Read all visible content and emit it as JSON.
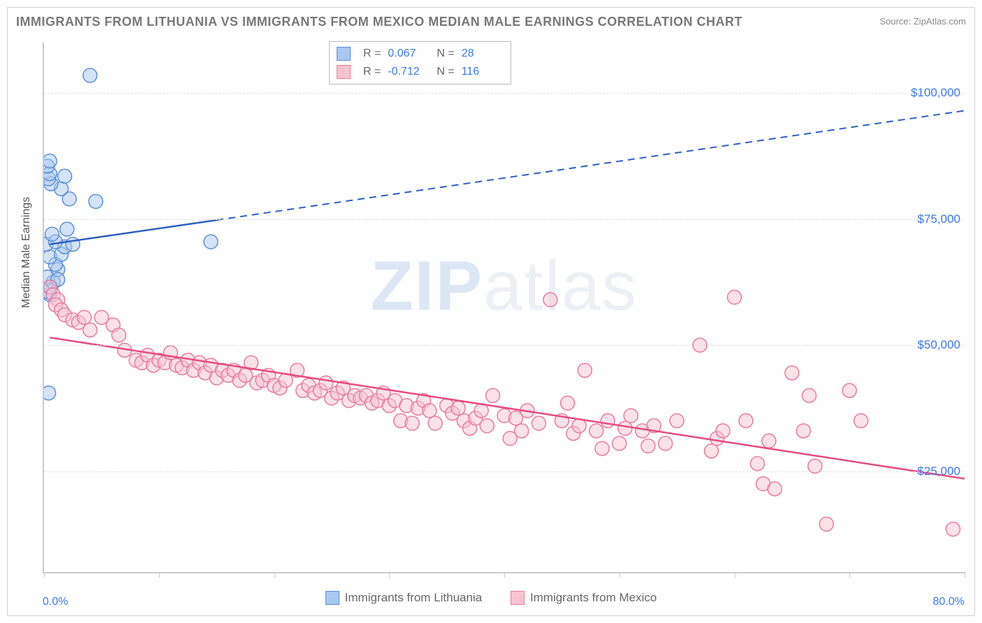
{
  "title": "IMMIGRANTS FROM LITHUANIA VS IMMIGRANTS FROM MEXICO MEDIAN MALE EARNINGS CORRELATION CHART",
  "source": "Source: ZipAtlas.com",
  "watermark_a": "ZIP",
  "watermark_b": "atlas",
  "chart": {
    "type": "scatter",
    "background_color": "#ffffff",
    "grid_color": "#e0e0e0",
    "axis_color": "#cacaca",
    "tick_label_color": "#3b78e7",
    "ylabel": "Median Male Earnings",
    "ylabel_color": "#555555",
    "ylabel_fontsize": 16,
    "xlim": [
      0,
      80
    ],
    "xtick_positions": [
      0,
      10,
      20,
      30,
      40,
      50,
      60,
      70,
      80
    ],
    "xmin_label": "0.0%",
    "xmax_label": "80.0%",
    "ylim": [
      5000,
      110000
    ],
    "yticks": [
      25000,
      50000,
      75000,
      100000
    ],
    "ytick_labels": [
      "$25,000",
      "$50,000",
      "$75,000",
      "$100,000"
    ],
    "marker_radius": 10,
    "marker_opacity": 0.5,
    "line_width": 2.5,
    "dashed_line_width": 2,
    "series": [
      {
        "name": "Immigrants from Lithuania",
        "fill_color": "#a9c7f0",
        "stroke_color": "#5b8fd6",
        "line_color": "#2e5fc4",
        "R": "0.067",
        "N": "28",
        "trend_solid": {
          "x1": 0.5,
          "y1": 70000,
          "x2": 15,
          "y2": 74800
        },
        "trend_dashed": {
          "x1": 15,
          "y1": 74800,
          "x2": 80,
          "y2": 96500
        },
        "points": [
          [
            0.5,
            60000
          ],
          [
            0.4,
            60500
          ],
          [
            0.6,
            61500
          ],
          [
            0.8,
            62500
          ],
          [
            0.3,
            63500
          ],
          [
            1.2,
            65000
          ],
          [
            1.0,
            66000
          ],
          [
            0.5,
            67500
          ],
          [
            1.5,
            68000
          ],
          [
            1.8,
            69500
          ],
          [
            0.2,
            70000
          ],
          [
            2.5,
            70000
          ],
          [
            1.0,
            70500
          ],
          [
            0.7,
            72000
          ],
          [
            2.0,
            73000
          ],
          [
            4.5,
            78500
          ],
          [
            2.2,
            79000
          ],
          [
            1.5,
            81000
          ],
          [
            0.6,
            82000
          ],
          [
            0.4,
            83000
          ],
          [
            1.8,
            83500
          ],
          [
            0.5,
            84000
          ],
          [
            0.3,
            85500
          ],
          [
            0.5,
            86500
          ],
          [
            4.0,
            103500
          ],
          [
            0.4,
            40500
          ],
          [
            1.2,
            63000
          ],
          [
            14.5,
            70500
          ]
        ]
      },
      {
        "name": "Immigrants from Mexico",
        "fill_color": "#f7c3d2",
        "stroke_color": "#e77aa0",
        "line_color": "#e84a82",
        "R": "-0.712",
        "N": "116",
        "trend_solid": {
          "x1": 0.5,
          "y1": 51500,
          "x2": 80,
          "y2": 23500
        },
        "trend_dashed": null,
        "points": [
          [
            0.5,
            61500
          ],
          [
            0.8,
            60000
          ],
          [
            1.2,
            59000
          ],
          [
            1.0,
            58000
          ],
          [
            1.5,
            57000
          ],
          [
            1.8,
            56000
          ],
          [
            2.5,
            55000
          ],
          [
            3.0,
            54500
          ],
          [
            3.5,
            55500
          ],
          [
            4.0,
            53000
          ],
          [
            5.0,
            55500
          ],
          [
            6.0,
            54000
          ],
          [
            6.5,
            52000
          ],
          [
            7.0,
            49000
          ],
          [
            8.0,
            47000
          ],
          [
            8.5,
            46500
          ],
          [
            9.0,
            48000
          ],
          [
            9.5,
            46000
          ],
          [
            10,
            47000
          ],
          [
            10.5,
            46500
          ],
          [
            11,
            48500
          ],
          [
            11.5,
            46000
          ],
          [
            12,
            45500
          ],
          [
            12.5,
            47000
          ],
          [
            13,
            45000
          ],
          [
            13.5,
            46500
          ],
          [
            14,
            44500
          ],
          [
            14.5,
            46000
          ],
          [
            15,
            43500
          ],
          [
            15.5,
            45000
          ],
          [
            16,
            44000
          ],
          [
            16.5,
            45000
          ],
          [
            17,
            43000
          ],
          [
            17.5,
            44000
          ],
          [
            18,
            46500
          ],
          [
            18.5,
            42500
          ],
          [
            19,
            43000
          ],
          [
            19.5,
            44000
          ],
          [
            20,
            42000
          ],
          [
            20.5,
            41500
          ],
          [
            21,
            43000
          ],
          [
            22,
            45000
          ],
          [
            22.5,
            41000
          ],
          [
            23,
            42000
          ],
          [
            23.5,
            40500
          ],
          [
            24,
            41000
          ],
          [
            24.5,
            42500
          ],
          [
            25,
            39500
          ],
          [
            25.5,
            40500
          ],
          [
            26,
            41500
          ],
          [
            26.5,
            39000
          ],
          [
            27,
            40000
          ],
          [
            27.5,
            39500
          ],
          [
            28,
            40000
          ],
          [
            28.5,
            38500
          ],
          [
            29,
            39000
          ],
          [
            29.5,
            40500
          ],
          [
            30,
            38000
          ],
          [
            30.5,
            39000
          ],
          [
            31,
            35000
          ],
          [
            31.5,
            38000
          ],
          [
            32,
            34500
          ],
          [
            32.5,
            37500
          ],
          [
            33,
            39000
          ],
          [
            33.5,
            37000
          ],
          [
            34,
            34500
          ],
          [
            35,
            38000
          ],
          [
            35.5,
            36500
          ],
          [
            36,
            37500
          ],
          [
            36.5,
            35000
          ],
          [
            37,
            33500
          ],
          [
            37.5,
            35500
          ],
          [
            38,
            37000
          ],
          [
            38.5,
            34000
          ],
          [
            39,
            40000
          ],
          [
            40,
            36000
          ],
          [
            40.5,
            31500
          ],
          [
            41,
            35500
          ],
          [
            41.5,
            33000
          ],
          [
            42,
            37000
          ],
          [
            43,
            34500
          ],
          [
            45,
            35000
          ],
          [
            45.5,
            38500
          ],
          [
            46,
            32500
          ],
          [
            46.5,
            34000
          ],
          [
            47,
            45000
          ],
          [
            48,
            33000
          ],
          [
            48.5,
            29500
          ],
          [
            49,
            35000
          ],
          [
            50,
            30500
          ],
          [
            50.5,
            33500
          ],
          [
            51,
            36000
          ],
          [
            52,
            33000
          ],
          [
            52.5,
            30000
          ],
          [
            44,
            59000
          ],
          [
            53,
            34000
          ],
          [
            54,
            30500
          ],
          [
            55,
            35000
          ],
          [
            57,
            50000
          ],
          [
            58,
            29000
          ],
          [
            58.5,
            31500
          ],
          [
            59,
            33000
          ],
          [
            60,
            59500
          ],
          [
            61,
            35000
          ],
          [
            62,
            26500
          ],
          [
            62.5,
            22500
          ],
          [
            63,
            31000
          ],
          [
            63.5,
            21500
          ],
          [
            65,
            44500
          ],
          [
            66,
            33000
          ],
          [
            66.5,
            40000
          ],
          [
            67,
            26000
          ],
          [
            68,
            14500
          ],
          [
            70,
            41000
          ],
          [
            71,
            35000
          ],
          [
            79,
            13500
          ]
        ]
      }
    ]
  },
  "corr_legend_labels": {
    "R": "R  =",
    "N": "N  ="
  },
  "bottom_legend_label_a": "Immigrants from Lithuania",
  "bottom_legend_label_b": "Immigrants from Mexico"
}
